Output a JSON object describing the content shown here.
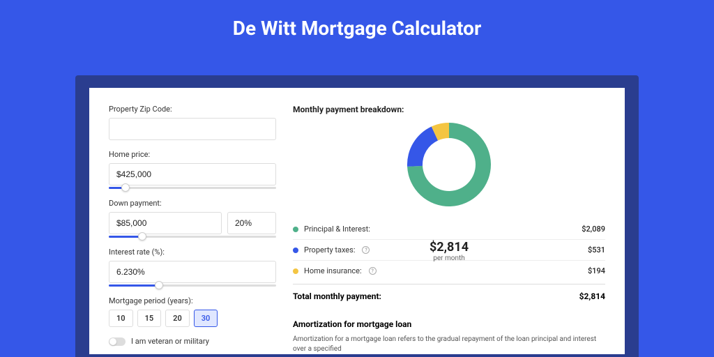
{
  "page_title": "De Witt Mortgage Calculator",
  "colors": {
    "page_bg": "#3557e8",
    "bottom_bar": "#2a3d8f",
    "card_bg": "#ffffff",
    "accent": "#3557e8",
    "border": "#dddddd"
  },
  "form": {
    "zip": {
      "label": "Property Zip Code:",
      "value": ""
    },
    "home_price": {
      "label": "Home price:",
      "value": "$425,000",
      "slider_pct": 10
    },
    "down_payment": {
      "label": "Down payment:",
      "value": "$85,000",
      "pct_value": "20%",
      "slider_pct": 20
    },
    "interest": {
      "label": "Interest rate (%):",
      "value": "6.230%",
      "slider_pct": 30
    },
    "period": {
      "label": "Mortgage period (years):",
      "options": [
        "10",
        "15",
        "20",
        "30"
      ],
      "active_index": 3
    },
    "veteran": {
      "label": "I am veteran or military",
      "on": false
    }
  },
  "breakdown": {
    "title": "Monthly payment breakdown:",
    "donut": {
      "amount": "$2,814",
      "sub": "per month",
      "size": 120,
      "thickness": 22,
      "bg_color": "#ffffff",
      "slices": [
        {
          "label": "principal",
          "value": 2089,
          "color": "#4fb08a"
        },
        {
          "label": "taxes",
          "value": 531,
          "color": "#3557e8"
        },
        {
          "label": "insurance",
          "value": 194,
          "color": "#f4c542"
        }
      ]
    },
    "legend": [
      {
        "dot": "#4fb08a",
        "label": "Principal & Interest:",
        "info": false,
        "value": "$2,089"
      },
      {
        "dot": "#3557e8",
        "label": "Property taxes:",
        "info": true,
        "value": "$531"
      },
      {
        "dot": "#f4c542",
        "label": "Home insurance:",
        "info": true,
        "value": "$194"
      }
    ],
    "total": {
      "label": "Total monthly payment:",
      "value": "$2,814"
    }
  },
  "amortization": {
    "title": "Amortization for mortgage loan",
    "text": "Amortization for a mortgage loan refers to the gradual repayment of the loan principal and interest over a specified"
  }
}
